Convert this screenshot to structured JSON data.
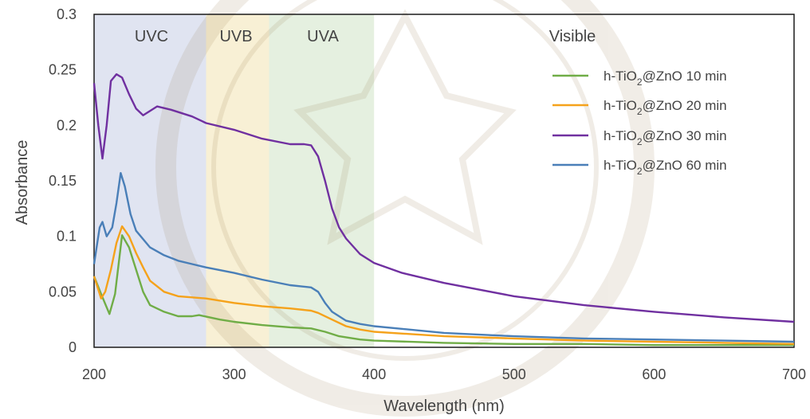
{
  "colors": {
    "uvc_band": "#c7cde6",
    "uvb_band": "#f3e3b3",
    "uva_band": "#cfe3c6",
    "series_10min": "#70ad47",
    "series_20min": "#f5a21b",
    "series_30min": "#7030a0",
    "series_60min": "#4a7fb8"
  },
  "watermark": {
    "icon": "university-seal-icon"
  },
  "chart_data": {
    "type": "line",
    "title": "",
    "xlabel": "Wavelength (nm)",
    "ylabel": "Absorbance",
    "xlim": [
      200,
      700
    ],
    "ylim": [
      0,
      0.3
    ],
    "x_ticks": [
      200,
      300,
      400,
      500,
      600,
      700
    ],
    "y_ticks": [
      0,
      0.05,
      0.1,
      0.15,
      0.2,
      0.25,
      0.3
    ],
    "x_tick_labels": [
      "200",
      "300",
      "400",
      "500",
      "600",
      "700"
    ],
    "y_tick_labels": [
      "0",
      "0.05",
      "0.1",
      "0.15",
      "0.2",
      "0.25",
      "0.3"
    ],
    "grid": false,
    "legend_position": "top-right",
    "regions": [
      {
        "label": "UVC",
        "x_start": 200,
        "x_end": 280,
        "color": "#c7cde6"
      },
      {
        "label": "UVB",
        "x_start": 280,
        "x_end": 325,
        "color": "#f3e3b3"
      },
      {
        "label": "UVA",
        "x_start": 325,
        "x_end": 400,
        "color": "#cfe3c6"
      },
      {
        "label": "Visible",
        "x_start": 400,
        "x_end": 700,
        "color": null
      }
    ],
    "series": [
      {
        "name": "h-TiO₂@ZnO 10 min",
        "legend": {
          "prefix": "h-TiO",
          "sub": "2",
          "suffix": "@ZnO 10 min"
        },
        "color": "#70ad47",
        "points": [
          [
            200,
            0.064
          ],
          [
            205,
            0.048
          ],
          [
            211,
            0.03
          ],
          [
            215,
            0.048
          ],
          [
            220,
            0.101
          ],
          [
            225,
            0.09
          ],
          [
            230,
            0.07
          ],
          [
            235,
            0.05
          ],
          [
            240,
            0.038
          ],
          [
            250,
            0.032
          ],
          [
            260,
            0.028
          ],
          [
            270,
            0.028
          ],
          [
            275,
            0.029
          ],
          [
            290,
            0.025
          ],
          [
            300,
            0.023
          ],
          [
            320,
            0.02
          ],
          [
            340,
            0.018
          ],
          [
            355,
            0.017
          ],
          [
            365,
            0.014
          ],
          [
            375,
            0.01
          ],
          [
            390,
            0.007
          ],
          [
            400,
            0.006
          ],
          [
            450,
            0.004
          ],
          [
            500,
            0.003
          ],
          [
            550,
            0.003
          ],
          [
            600,
            0.002
          ],
          [
            650,
            0.002
          ],
          [
            700,
            0.002
          ]
        ]
      },
      {
        "name": "h-TiO₂@ZnO 20 min",
        "legend": {
          "prefix": "h-TiO",
          "sub": "2",
          "suffix": "@ZnO 20 min"
        },
        "color": "#f5a21b",
        "points": [
          [
            200,
            0.064
          ],
          [
            205,
            0.044
          ],
          [
            208,
            0.05
          ],
          [
            212,
            0.07
          ],
          [
            216,
            0.094
          ],
          [
            220,
            0.109
          ],
          [
            225,
            0.1
          ],
          [
            230,
            0.085
          ],
          [
            235,
            0.072
          ],
          [
            240,
            0.06
          ],
          [
            250,
            0.05
          ],
          [
            260,
            0.046
          ],
          [
            270,
            0.045
          ],
          [
            280,
            0.044
          ],
          [
            300,
            0.04
          ],
          [
            320,
            0.037
          ],
          [
            340,
            0.035
          ],
          [
            355,
            0.033
          ],
          [
            360,
            0.031
          ],
          [
            370,
            0.025
          ],
          [
            380,
            0.019
          ],
          [
            390,
            0.016
          ],
          [
            400,
            0.014
          ],
          [
            450,
            0.01
          ],
          [
            500,
            0.008
          ],
          [
            550,
            0.006
          ],
          [
            600,
            0.005
          ],
          [
            650,
            0.004
          ],
          [
            700,
            0.003
          ]
        ]
      },
      {
        "name": "h-TiO₂@ZnO 30 min",
        "legend": {
          "prefix": "h-TiO",
          "sub": "2",
          "suffix": "@ZnO 30 min"
        },
        "color": "#7030a0",
        "points": [
          [
            200,
            0.238
          ],
          [
            203,
            0.2
          ],
          [
            206,
            0.17
          ],
          [
            209,
            0.2
          ],
          [
            212,
            0.24
          ],
          [
            216,
            0.246
          ],
          [
            220,
            0.243
          ],
          [
            225,
            0.228
          ],
          [
            230,
            0.215
          ],
          [
            235,
            0.209
          ],
          [
            240,
            0.213
          ],
          [
            245,
            0.217
          ],
          [
            255,
            0.214
          ],
          [
            270,
            0.208
          ],
          [
            280,
            0.202
          ],
          [
            300,
            0.196
          ],
          [
            320,
            0.188
          ],
          [
            340,
            0.183
          ],
          [
            350,
            0.183
          ],
          [
            355,
            0.182
          ],
          [
            360,
            0.172
          ],
          [
            365,
            0.15
          ],
          [
            370,
            0.125
          ],
          [
            375,
            0.108
          ],
          [
            380,
            0.098
          ],
          [
            390,
            0.084
          ],
          [
            400,
            0.076
          ],
          [
            420,
            0.067
          ],
          [
            450,
            0.058
          ],
          [
            500,
            0.046
          ],
          [
            550,
            0.038
          ],
          [
            600,
            0.032
          ],
          [
            650,
            0.027
          ],
          [
            700,
            0.023
          ]
        ]
      },
      {
        "name": "h-TiO₂@ZnO 60 min",
        "legend": {
          "prefix": "h-TiO",
          "sub": "2",
          "suffix": "@ZnO 60 min"
        },
        "color": "#4a7fb8",
        "points": [
          [
            200,
            0.075
          ],
          [
            204,
            0.108
          ],
          [
            206,
            0.113
          ],
          [
            209,
            0.1
          ],
          [
            213,
            0.108
          ],
          [
            216,
            0.13
          ],
          [
            219,
            0.157
          ],
          [
            222,
            0.145
          ],
          [
            226,
            0.12
          ],
          [
            230,
            0.105
          ],
          [
            240,
            0.09
          ],
          [
            250,
            0.083
          ],
          [
            260,
            0.078
          ],
          [
            270,
            0.075
          ],
          [
            280,
            0.072
          ],
          [
            300,
            0.067
          ],
          [
            320,
            0.061
          ],
          [
            340,
            0.056
          ],
          [
            355,
            0.054
          ],
          [
            360,
            0.05
          ],
          [
            365,
            0.04
          ],
          [
            370,
            0.032
          ],
          [
            380,
            0.024
          ],
          [
            390,
            0.021
          ],
          [
            400,
            0.019
          ],
          [
            450,
            0.013
          ],
          [
            500,
            0.01
          ],
          [
            550,
            0.008
          ],
          [
            600,
            0.007
          ],
          [
            650,
            0.006
          ],
          [
            700,
            0.005
          ]
        ]
      }
    ]
  }
}
